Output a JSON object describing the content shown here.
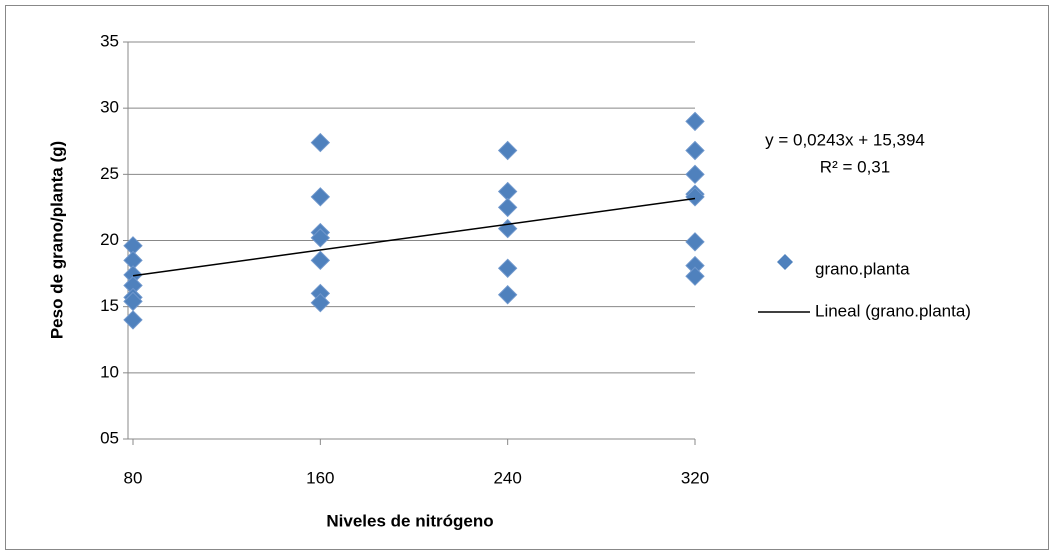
{
  "chart_data": {
    "type": "scatter",
    "x_label": "Niveles de nitrógeno",
    "y_label": "Peso de grano/planta (g)",
    "xlim": [
      80,
      320
    ],
    "xticks": [
      80,
      160,
      240,
      320
    ],
    "ylim": [
      5,
      35
    ],
    "yticks": [
      {
        "value": 5,
        "label": "05"
      },
      10,
      15,
      20,
      25,
      30,
      35
    ],
    "grid": true,
    "series": [
      {
        "name": "grano.planta",
        "color": "#4f81bd",
        "x": [
          80,
          80,
          80,
          80,
          80,
          80,
          80,
          160,
          160,
          160,
          160,
          160,
          160,
          160,
          240,
          240,
          240,
          240,
          240,
          240,
          320,
          320,
          320,
          320,
          320,
          320,
          320,
          320
        ],
        "values": [
          19.6,
          18.5,
          17.4,
          16.6,
          15.7,
          15.4,
          14.0,
          27.4,
          23.3,
          20.6,
          20.2,
          18.5,
          16.0,
          15.3,
          26.8,
          23.7,
          22.5,
          20.9,
          17.9,
          15.9,
          29.0,
          26.8,
          25.0,
          23.5,
          23.3,
          19.9,
          18.1,
          17.3
        ]
      }
    ],
    "trendline": {
      "name": "Lineal (grano.planta)",
      "color": "#000000",
      "equation": "y = 0,0243x + 15,394",
      "r2": "R² = 0,31",
      "x": [
        80,
        320
      ],
      "values": [
        17.34,
        23.17
      ]
    }
  }
}
